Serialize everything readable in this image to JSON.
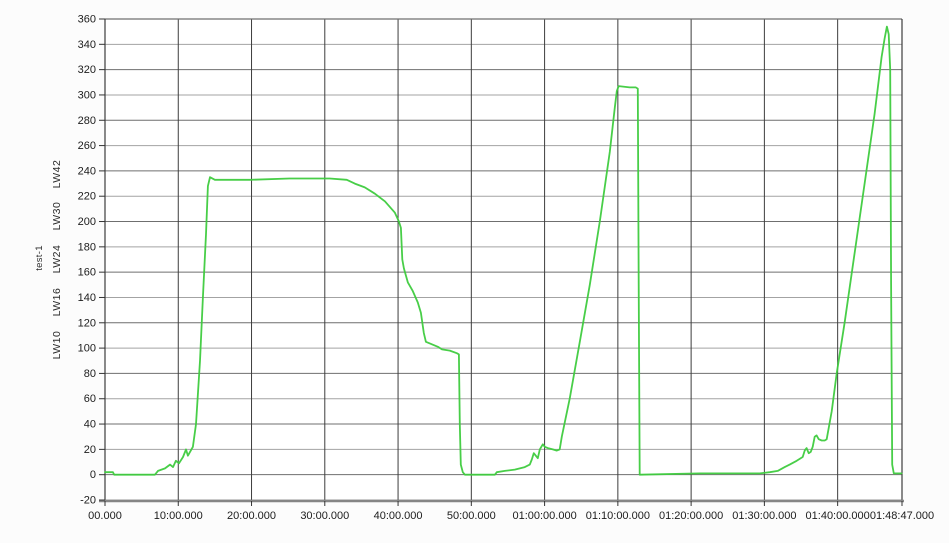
{
  "chart_data": {
    "type": "line",
    "title": "",
    "row_label": "test-1",
    "channel_labels": [
      "LW42",
      "LW30",
      "LW24",
      "LW16",
      "LW10"
    ],
    "x_axis": {
      "min": 0,
      "max": 6527,
      "ticks": [
        {
          "t": 0,
          "label": "00.000"
        },
        {
          "t": 600,
          "label": "10:00.000"
        },
        {
          "t": 1200,
          "label": "20:00.000"
        },
        {
          "t": 1800,
          "label": "30:00.000"
        },
        {
          "t": 2400,
          "label": "40:00.000"
        },
        {
          "t": 3000,
          "label": "50:00.000"
        },
        {
          "t": 3600,
          "label": "01:00:00.000"
        },
        {
          "t": 4200,
          "label": "01:10:00.000"
        },
        {
          "t": 4800,
          "label": "01:20:00.000"
        },
        {
          "t": 5400,
          "label": "01:30:00.000"
        },
        {
          "t": 6000,
          "label": "01:40:00.000"
        },
        {
          "t": 6527,
          "label": "01:48:47.000"
        }
      ]
    },
    "y_axis": {
      "min": -20,
      "max": 360,
      "step": 20
    },
    "grid": true,
    "legend": "none",
    "colors": {
      "line": "#3ecb3e",
      "grid_light": "#a3a3a3",
      "grid_dark": "#6f6f6f",
      "grid_vertical": "#3d3d3d",
      "axis": "#858585",
      "tick": "#333333",
      "text": "#1c1c1c",
      "plot_background": "#ffffff"
    },
    "series": [
      {
        "name": "test-1",
        "color": "#3ecb3e",
        "points": [
          [
            0,
            2
          ],
          [
            65,
            2
          ],
          [
            75,
            0
          ],
          [
            409,
            0
          ],
          [
            434,
            3
          ],
          [
            491,
            5
          ],
          [
            532,
            8
          ],
          [
            557,
            6
          ],
          [
            581,
            11
          ],
          [
            606,
            9
          ],
          [
            639,
            14
          ],
          [
            663,
            20
          ],
          [
            679,
            15
          ],
          [
            720,
            22
          ],
          [
            745,
            40
          ],
          [
            778,
            90
          ],
          [
            802,
            140
          ],
          [
            827,
            190
          ],
          [
            843,
            228
          ],
          [
            860,
            235
          ],
          [
            900,
            233
          ],
          [
            1190,
            233
          ],
          [
            1510,
            234
          ],
          [
            1840,
            234
          ],
          [
            1980,
            233
          ],
          [
            2046,
            230
          ],
          [
            2128,
            227
          ],
          [
            2210,
            222
          ],
          [
            2292,
            216
          ],
          [
            2374,
            207
          ],
          [
            2407,
            200
          ],
          [
            2423,
            195
          ],
          [
            2435,
            170
          ],
          [
            2448,
            163
          ],
          [
            2480,
            152
          ],
          [
            2521,
            145
          ],
          [
            2562,
            136
          ],
          [
            2587,
            128
          ],
          [
            2611,
            112
          ],
          [
            2628,
            105
          ],
          [
            2677,
            103
          ],
          [
            2726,
            101
          ],
          [
            2760,
            99
          ],
          [
            2824,
            98
          ],
          [
            2881,
            96
          ],
          [
            2898,
            95
          ],
          [
            2906,
            40
          ],
          [
            2914,
            8
          ],
          [
            2930,
            2
          ],
          [
            2947,
            0
          ],
          [
            3193,
            0
          ],
          [
            3209,
            2
          ],
          [
            3274,
            3
          ],
          [
            3356,
            4
          ],
          [
            3438,
            6
          ],
          [
            3479,
            8
          ],
          [
            3495,
            12
          ],
          [
            3512,
            17
          ],
          [
            3528,
            15
          ],
          [
            3544,
            13
          ],
          [
            3561,
            20
          ],
          [
            3585,
            24
          ],
          [
            3602,
            22
          ],
          [
            3626,
            21
          ],
          [
            3667,
            20
          ],
          [
            3700,
            19
          ],
          [
            3724,
            20
          ],
          [
            3741,
            30
          ],
          [
            3806,
            60
          ],
          [
            3888,
            105
          ],
          [
            3970,
            150
          ],
          [
            4052,
            200
          ],
          [
            4134,
            255
          ],
          [
            4175,
            290
          ],
          [
            4191,
            303
          ],
          [
            4207,
            307
          ],
          [
            4297,
            306
          ],
          [
            4346,
            306
          ],
          [
            4363,
            305
          ],
          [
            4371,
            150
          ],
          [
            4379,
            0
          ],
          [
            4870,
            1
          ],
          [
            5321,
            1
          ],
          [
            5362,
            1
          ],
          [
            5444,
            2
          ],
          [
            5509,
            3
          ],
          [
            5566,
            6
          ],
          [
            5607,
            8
          ],
          [
            5665,
            11
          ],
          [
            5714,
            14
          ],
          [
            5730,
            19
          ],
          [
            5746,
            21
          ],
          [
            5763,
            17
          ],
          [
            5779,
            18
          ],
          [
            5796,
            22
          ],
          [
            5812,
            30
          ],
          [
            5828,
            31
          ],
          [
            5845,
            28
          ],
          [
            5869,
            27
          ],
          [
            5894,
            27
          ],
          [
            5910,
            28
          ],
          [
            5918,
            32
          ],
          [
            5951,
            50
          ],
          [
            5992,
            80
          ],
          [
            6057,
            120
          ],
          [
            6139,
            175
          ],
          [
            6221,
            230
          ],
          [
            6303,
            285
          ],
          [
            6360,
            330
          ],
          [
            6385,
            345
          ],
          [
            6403,
            354
          ],
          [
            6418,
            348
          ],
          [
            6430,
            320
          ],
          [
            6438,
            150
          ],
          [
            6447,
            8
          ],
          [
            6460,
            1
          ],
          [
            6524,
            1
          ]
        ]
      }
    ]
  }
}
